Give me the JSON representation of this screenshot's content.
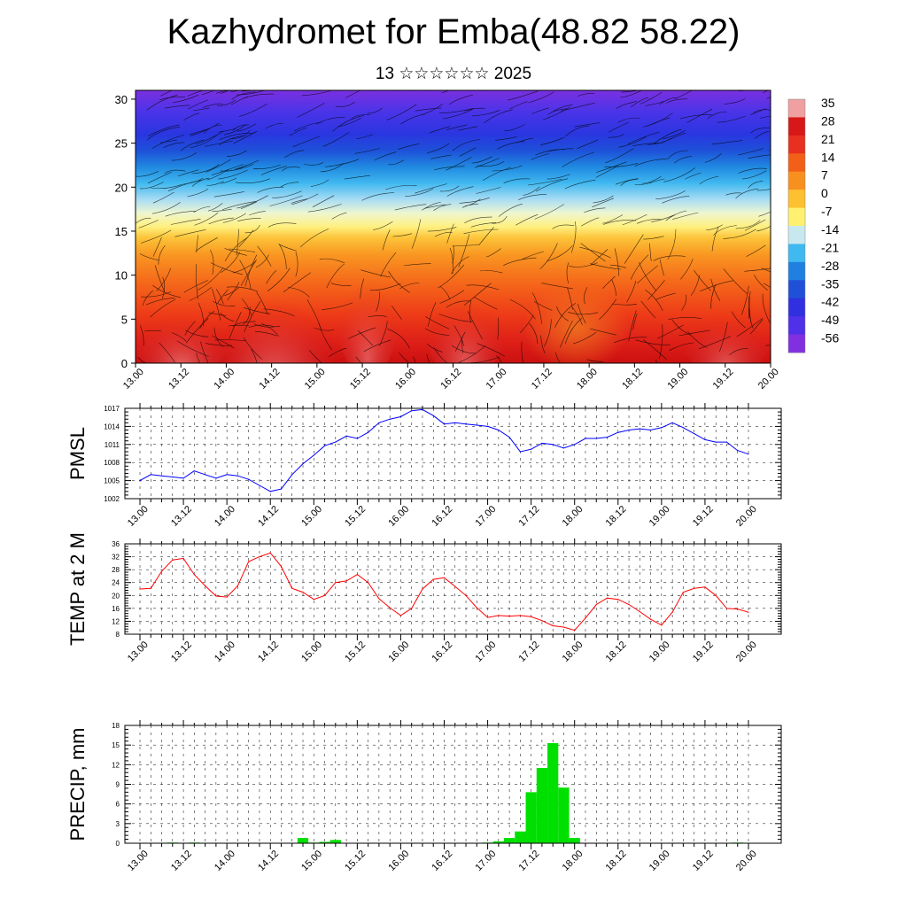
{
  "title": "Kazhydromet for Emba(48.82 58.22)",
  "subtitle": "13 ☆☆☆☆☆☆ 2025",
  "x_ticks": [
    "13.00",
    "13.12",
    "14.00",
    "14.12",
    "15.00",
    "15.12",
    "16.00",
    "16.12",
    "17.00",
    "17.12",
    "18.00",
    "18.12",
    "19.00",
    "19.12",
    "20.00"
  ],
  "chart_data": [
    {
      "type": "heatmap",
      "name": "vertical cross-section (temperature shading with wind streamlines)",
      "xlabel": "",
      "ylabel": "",
      "ylim": [
        0,
        31
      ],
      "y_ticks": [
        0,
        5,
        10,
        15,
        20,
        25,
        30
      ],
      "x_ticks": [
        "13.00",
        "13.12",
        "14.00",
        "14.12",
        "15.00",
        "15.12",
        "16.00",
        "16.12",
        "17.00",
        "17.12",
        "18.00",
        "18.12",
        "19.00",
        "19.12",
        "20.00"
      ],
      "colorbar_labels": [
        "35",
        "28",
        "21",
        "14",
        "7",
        "0",
        "-7",
        "-14",
        "-21",
        "-28",
        "-35",
        "-42",
        "-49",
        "-56"
      ],
      "colorbar_colors": [
        "#f0a0a0",
        "#d81818",
        "#e83020",
        "#f26018",
        "#f89020",
        "#fcc030",
        "#fff070",
        "#c8e8f0",
        "#40b8f0",
        "#2080e0",
        "#2050d8",
        "#3030e0",
        "#5030e8",
        "#8030e0"
      ]
    },
    {
      "type": "line",
      "ylabel": "PMSL",
      "ylim": [
        1002,
        1017
      ],
      "y_ticks": [
        1002,
        1005,
        1008,
        1011,
        1014,
        1017
      ],
      "grid": true,
      "series": [
        {
          "color": "#0000ff",
          "x": [
            0,
            1,
            2,
            3,
            4,
            5,
            6,
            7,
            8,
            9,
            10,
            11,
            12,
            13,
            14,
            15,
            16,
            17,
            18,
            19,
            20,
            21,
            22,
            23,
            24,
            25,
            26,
            27,
            28,
            29,
            30,
            31,
            32,
            33,
            34,
            35,
            36,
            37,
            38,
            39,
            40,
            41,
            42,
            43,
            44,
            45,
            46,
            47,
            48,
            49,
            50,
            51,
            52,
            53,
            54,
            55,
            56
          ],
          "values": [
            1005.0,
            1006.0,
            1005.8,
            1005.6,
            1005.4,
            1006.6,
            1006.0,
            1005.4,
            1006.0,
            1005.8,
            1005.2,
            1004.2,
            1003.2,
            1003.6,
            1006.0,
            1007.8,
            1009.2,
            1010.8,
            1011.4,
            1012.4,
            1012.0,
            1013.0,
            1014.6,
            1015.2,
            1015.6,
            1016.6,
            1016.8,
            1015.8,
            1014.4,
            1014.6,
            1014.4,
            1014.2,
            1014.0,
            1013.4,
            1012.2,
            1009.8,
            1010.2,
            1011.2,
            1011.0,
            1010.4,
            1011.0,
            1012.0,
            1012.0,
            1012.2,
            1013.0,
            1013.4,
            1013.6,
            1013.4,
            1013.8,
            1014.6,
            1013.8,
            1012.8,
            1011.8,
            1011.4,
            1011.4,
            1010.0,
            1009.4
          ]
        }
      ]
    },
    {
      "type": "line",
      "ylabel": "TEMP at 2 M",
      "ylim": [
        8,
        36
      ],
      "y_ticks": [
        8,
        12,
        16,
        20,
        24,
        28,
        32,
        36
      ],
      "grid": true,
      "series": [
        {
          "color": "#ff0000",
          "x": [
            0,
            1,
            2,
            3,
            4,
            5,
            6,
            7,
            8,
            9,
            10,
            11,
            12,
            13,
            14,
            15,
            16,
            17,
            18,
            19,
            20,
            21,
            22,
            23,
            24,
            25,
            26,
            27,
            28,
            29,
            30,
            31,
            32,
            33,
            34,
            35,
            36,
            37,
            38,
            39,
            40,
            41,
            42,
            43,
            44,
            45,
            46,
            47,
            48,
            49,
            50,
            51,
            52,
            53,
            54,
            55,
            56
          ],
          "values": [
            22.0,
            22.2,
            27.5,
            31.0,
            31.5,
            26.5,
            23.0,
            19.8,
            19.5,
            23.0,
            30.5,
            32.0,
            33.2,
            29.0,
            22.2,
            21.0,
            18.8,
            20.0,
            24.0,
            24.5,
            26.5,
            24.0,
            19.0,
            16.2,
            13.8,
            16.0,
            22.0,
            25.0,
            25.5,
            22.8,
            20.0,
            16.2,
            13.2,
            13.8,
            13.6,
            13.8,
            13.4,
            12.2,
            10.6,
            10.2,
            9.2,
            13.0,
            17.2,
            19.2,
            18.8,
            17.2,
            15.0,
            12.6,
            10.8,
            14.8,
            21.0,
            22.2,
            22.6,
            20.0,
            16.0,
            15.8,
            14.8
          ]
        }
      ]
    },
    {
      "type": "bar",
      "ylabel": "PRECIP, mm",
      "ylim": [
        0,
        18
      ],
      "y_ticks": [
        0,
        3,
        6,
        9,
        12,
        15,
        18
      ],
      "grid": true,
      "bar_color": "#00e000",
      "x": [
        0,
        1,
        2,
        3,
        4,
        5,
        6,
        7,
        8,
        9,
        10,
        11,
        12,
        13,
        14,
        15,
        16,
        17,
        18,
        19,
        20,
        21,
        22,
        23,
        24,
        25,
        26,
        27,
        28,
        29,
        30,
        31,
        32,
        33,
        34,
        35,
        36,
        37,
        38,
        39,
        40,
        41,
        42,
        43,
        44,
        45,
        46,
        47,
        48,
        49,
        50,
        51,
        52,
        53,
        54,
        55,
        56
      ],
      "values": [
        0,
        0,
        0,
        0.1,
        0,
        0.1,
        0,
        0,
        0,
        0,
        0,
        0,
        0,
        0,
        0,
        0.8,
        0.1,
        0.2,
        0.5,
        0,
        0,
        0,
        0,
        0,
        0,
        0,
        0,
        0,
        0,
        0,
        0,
        0,
        0.1,
        0.3,
        0.8,
        1.8,
        7.8,
        11.5,
        15.3,
        8.5,
        0.8,
        0,
        0,
        0,
        0,
        0,
        0,
        0,
        0,
        0,
        0,
        0,
        0,
        0,
        0,
        0.1,
        0
      ]
    }
  ]
}
